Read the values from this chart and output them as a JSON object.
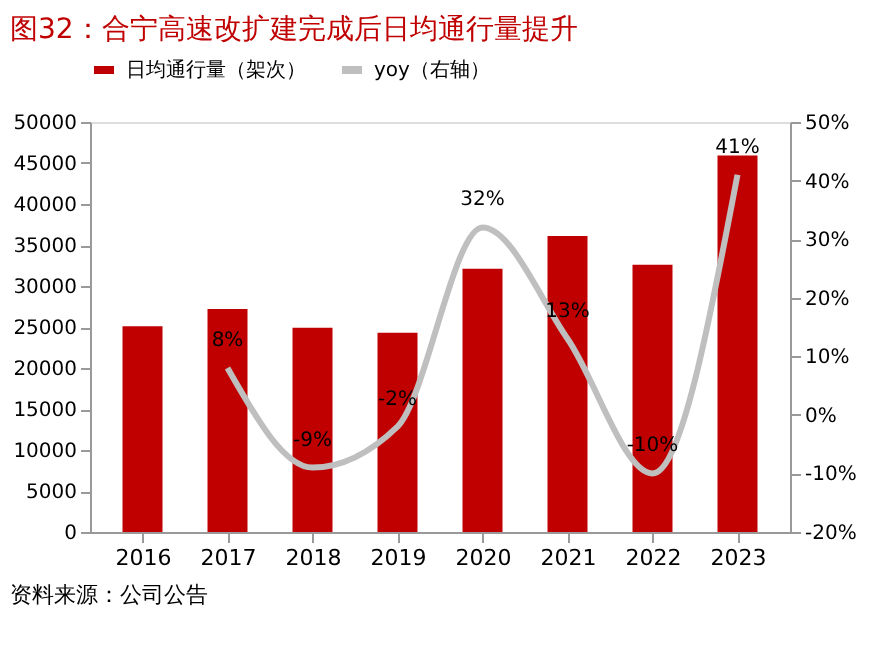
{
  "chart_data": {
    "type": "bar",
    "title": "图32：合宁高速改扩建完成后日均通行量提升",
    "categories": [
      "2016",
      "2017",
      "2018",
      "2019",
      "2020",
      "2021",
      "2022",
      "2023"
    ],
    "series": [
      {
        "name": "日均通行量（架次）",
        "color": "#c00000",
        "values": [
          25100,
          27200,
          24900,
          24300,
          32100,
          36100,
          32600,
          45900
        ]
      },
      {
        "name": "yoy（右轴）",
        "type": "line",
        "axis": "y2",
        "color": "#bfbfbf",
        "values": [
          null,
          8,
          -9,
          -2,
          32,
          13,
          -10,
          41
        ],
        "value_labels": [
          null,
          "8%",
          "-9%",
          "-2%",
          "32%",
          "13%",
          "-10%",
          "41%"
        ]
      }
    ],
    "ylim": [
      0,
      50000
    ],
    "yticks": [
      0,
      5000,
      10000,
      15000,
      20000,
      25000,
      30000,
      35000,
      40000,
      45000,
      50000
    ],
    "y2lim": [
      -20,
      50
    ],
    "y2ticks": [
      {
        "value": -20,
        "label": "-20%"
      },
      {
        "value": -10,
        "label": "-10%"
      },
      {
        "value": 0,
        "label": "0%"
      },
      {
        "value": 10,
        "label": "10%"
      },
      {
        "value": 20,
        "label": "20%"
      },
      {
        "value": 30,
        "label": "30%"
      },
      {
        "value": 40,
        "label": "40%"
      },
      {
        "value": 50,
        "label": "50%"
      }
    ],
    "legend": "top",
    "grid": false,
    "marker": "none",
    "line_style": "solid",
    "annotations": [
      "资料来源：公司公告"
    ]
  }
}
